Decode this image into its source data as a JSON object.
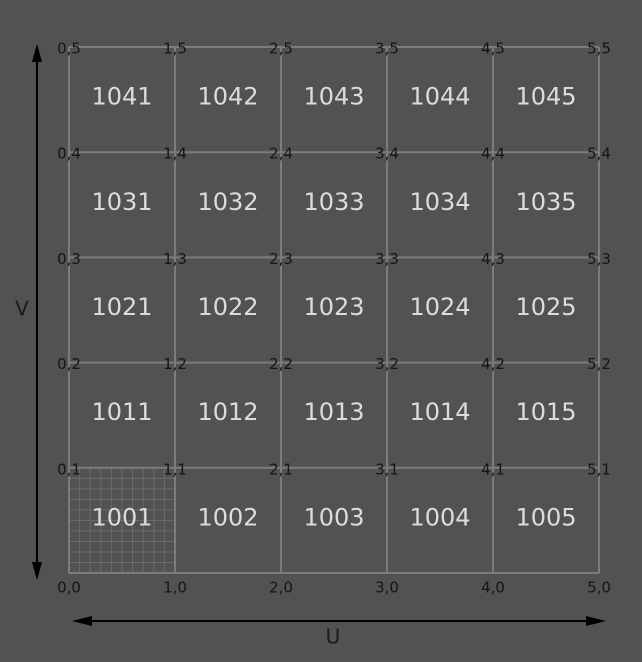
{
  "tiles": [
    [
      "1041",
      "1042",
      "1043",
      "1044",
      "1045"
    ],
    [
      "1031",
      "1032",
      "1033",
      "1034",
      "1035"
    ],
    [
      "1021",
      "1022",
      "1023",
      "1024",
      "1025"
    ],
    [
      "1011",
      "1012",
      "1013",
      "1014",
      "1015"
    ],
    [
      "1001",
      "1002",
      "1003",
      "1004",
      "1005"
    ]
  ],
  "corners": [
    [
      "0,5",
      "1,5",
      "2,5",
      "3,5",
      "4,5",
      "5,5"
    ],
    [
      "0,4",
      "1,4",
      "2,4",
      "3,4",
      "4,4",
      "5,4"
    ],
    [
      "0,3",
      "1,3",
      "2,3",
      "3,3",
      "4,3",
      "5,3"
    ],
    [
      "0,2",
      "1,2",
      "2,2",
      "3,2",
      "4,2",
      "5,2"
    ],
    [
      "0,1",
      "1,1",
      "2,1",
      "3,1",
      "4,1",
      "5,1"
    ],
    [
      "0,0",
      "1,0",
      "2,0",
      "3,0",
      "4,0",
      "5,0"
    ]
  ],
  "axes": {
    "u": "U",
    "v": "V"
  }
}
